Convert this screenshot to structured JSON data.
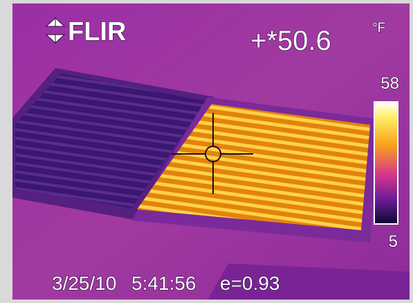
{
  "logo": "FLIR",
  "reading": {
    "value": "+*50.6",
    "unit": "°F"
  },
  "scale": {
    "max": "58",
    "min": "5"
  },
  "footer": {
    "date": "3/25/10",
    "time": "5:41:56",
    "emissivity": "e=0.93"
  }
}
